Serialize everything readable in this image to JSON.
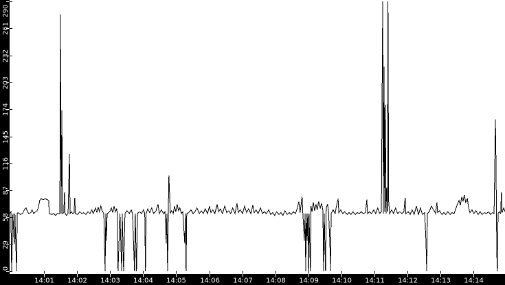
{
  "chart_data": {
    "type": "line",
    "title": "",
    "xlabel": "",
    "ylabel": "",
    "grid": false,
    "legend": "none",
    "line_color": "#000000",
    "plot_bg_color": "#ffffff",
    "axis_band_color": "#000000",
    "axis_text_color": "#ffffff",
    "ylim": [
      0,
      290
    ],
    "y_ticks": [
      0,
      29,
      58,
      87,
      116,
      145,
      174,
      203,
      232,
      261,
      290
    ],
    "x_tick_labels": [
      "14:01",
      "14:02",
      "14:03",
      "14:04",
      "14:05",
      "14:06",
      "14:07",
      "14:08",
      "14:09",
      "14:10",
      "14:11",
      "14:12",
      "14:13",
      "14:14"
    ],
    "x_tick_minutes": [
      1,
      2,
      3,
      4,
      5,
      6,
      7,
      8,
      9,
      10,
      11,
      12,
      13,
      14
    ],
    "xlim_minutes": [
      -0.04,
      14.95
    ],
    "x_unit": "time (HH:MM)",
    "baseline_value": 62,
    "points": [
      [
        -0.04,
        62
      ],
      [
        0,
        64
      ],
      [
        0.02,
        0
      ],
      [
        0.06,
        62
      ],
      [
        0.1,
        29
      ],
      [
        0.12,
        62
      ],
      [
        0.17,
        0
      ],
      [
        0.19,
        62
      ],
      [
        0.21,
        63
      ],
      [
        0.29,
        61
      ],
      [
        0.35,
        62
      ],
      [
        0.42,
        67
      ],
      [
        0.46,
        68
      ],
      [
        0.5,
        64
      ],
      [
        0.54,
        62
      ],
      [
        0.6,
        63
      ],
      [
        0.64,
        66
      ],
      [
        0.69,
        62
      ],
      [
        0.75,
        64
      ],
      [
        0.79,
        65
      ],
      [
        0.83,
        68
      ],
      [
        0.87,
        76
      ],
      [
        0.91,
        78
      ],
      [
        0.98,
        77
      ],
      [
        1.04,
        78
      ],
      [
        1.1,
        77
      ],
      [
        1.14,
        76
      ],
      [
        1.16,
        62
      ],
      [
        1.23,
        61
      ],
      [
        1.29,
        62
      ],
      [
        1.35,
        60
      ],
      [
        1.41,
        62
      ],
      [
        1.48,
        62
      ],
      [
        1.5,
        276
      ],
      [
        1.52,
        62
      ],
      [
        1.54,
        173
      ],
      [
        1.56,
        62
      ],
      [
        1.6,
        63
      ],
      [
        1.62,
        85
      ],
      [
        1.64,
        62
      ],
      [
        1.68,
        60
      ],
      [
        1.73,
        62
      ],
      [
        1.75,
        94
      ],
      [
        1.77,
        126
      ],
      [
        1.79,
        62
      ],
      [
        1.83,
        64
      ],
      [
        1.87,
        62
      ],
      [
        1.91,
        63
      ],
      [
        1.93,
        79
      ],
      [
        1.95,
        62
      ],
      [
        2.02,
        61
      ],
      [
        2.08,
        64
      ],
      [
        2.14,
        62
      ],
      [
        2.2,
        63
      ],
      [
        2.27,
        61
      ],
      [
        2.33,
        64
      ],
      [
        2.39,
        62
      ],
      [
        2.45,
        66
      ],
      [
        2.49,
        62
      ],
      [
        2.56,
        68
      ],
      [
        2.6,
        63
      ],
      [
        2.64,
        69
      ],
      [
        2.68,
        64
      ],
      [
        2.72,
        70
      ],
      [
        2.76,
        65
      ],
      [
        2.81,
        62
      ],
      [
        2.85,
        0
      ],
      [
        2.87,
        62
      ],
      [
        2.89,
        33
      ],
      [
        2.91,
        62
      ],
      [
        2.99,
        64
      ],
      [
        3.04,
        68
      ],
      [
        3.08,
        63
      ],
      [
        3.12,
        70
      ],
      [
        3.16,
        64
      ],
      [
        3.2,
        67
      ],
      [
        3.22,
        62
      ],
      [
        3.24,
        0
      ],
      [
        3.3,
        62
      ],
      [
        3.35,
        0
      ],
      [
        3.37,
        62
      ],
      [
        3.41,
        0
      ],
      [
        3.45,
        62
      ],
      [
        3.51,
        65
      ],
      [
        3.58,
        62
      ],
      [
        3.64,
        66
      ],
      [
        3.68,
        62
      ],
      [
        3.74,
        0
      ],
      [
        3.76,
        62
      ],
      [
        3.8,
        0
      ],
      [
        3.83,
        62
      ],
      [
        3.89,
        64
      ],
      [
        3.95,
        62
      ],
      [
        4.01,
        66
      ],
      [
        4.05,
        62
      ],
      [
        4.07,
        0
      ],
      [
        4.09,
        62
      ],
      [
        4.14,
        67
      ],
      [
        4.2,
        63
      ],
      [
        4.26,
        68
      ],
      [
        4.32,
        62
      ],
      [
        4.39,
        65
      ],
      [
        4.45,
        72
      ],
      [
        4.49,
        62
      ],
      [
        4.55,
        66
      ],
      [
        4.62,
        62
      ],
      [
        4.66,
        64
      ],
      [
        4.7,
        30
      ],
      [
        4.72,
        62
      ],
      [
        4.74,
        0
      ],
      [
        4.76,
        62
      ],
      [
        4.78,
        103
      ],
      [
        4.8,
        84
      ],
      [
        4.82,
        62
      ],
      [
        4.86,
        65
      ],
      [
        4.91,
        62
      ],
      [
        4.95,
        70
      ],
      [
        4.99,
        64
      ],
      [
        5.03,
        72
      ],
      [
        5.07,
        65
      ],
      [
        5.11,
        68
      ],
      [
        5.16,
        62
      ],
      [
        5.2,
        64
      ],
      [
        5.26,
        30
      ],
      [
        5.28,
        62
      ],
      [
        5.3,
        0
      ],
      [
        5.32,
        62
      ],
      [
        5.38,
        63
      ],
      [
        5.45,
        66
      ],
      [
        5.51,
        62
      ],
      [
        5.57,
        64
      ],
      [
        5.63,
        68
      ],
      [
        5.7,
        62
      ],
      [
        5.76,
        65
      ],
      [
        5.82,
        62
      ],
      [
        5.88,
        67
      ],
      [
        5.95,
        62
      ],
      [
        6.01,
        70
      ],
      [
        6.05,
        63
      ],
      [
        6.11,
        66
      ],
      [
        6.17,
        62
      ],
      [
        6.24,
        72
      ],
      [
        6.28,
        64
      ],
      [
        6.34,
        67
      ],
      [
        6.4,
        62
      ],
      [
        6.47,
        70
      ],
      [
        6.53,
        63
      ],
      [
        6.59,
        65
      ],
      [
        6.65,
        62
      ],
      [
        6.71,
        68
      ],
      [
        6.78,
        62
      ],
      [
        6.84,
        73
      ],
      [
        6.88,
        63
      ],
      [
        6.94,
        66
      ],
      [
        7.01,
        62
      ],
      [
        7.07,
        70
      ],
      [
        7.13,
        63
      ],
      [
        7.19,
        67
      ],
      [
        7.26,
        62
      ],
      [
        7.32,
        71
      ],
      [
        7.36,
        63
      ],
      [
        7.42,
        66
      ],
      [
        7.48,
        62
      ],
      [
        7.55,
        68
      ],
      [
        7.61,
        62
      ],
      [
        7.67,
        64
      ],
      [
        7.73,
        62
      ],
      [
        7.8,
        66
      ],
      [
        7.86,
        61
      ],
      [
        7.92,
        63
      ],
      [
        7.98,
        60
      ],
      [
        8.04,
        64
      ],
      [
        8.11,
        61
      ],
      [
        8.17,
        63
      ],
      [
        8.23,
        60
      ],
      [
        8.29,
        65
      ],
      [
        8.36,
        61
      ],
      [
        8.42,
        63
      ],
      [
        8.48,
        61
      ],
      [
        8.54,
        64
      ],
      [
        8.61,
        62
      ],
      [
        8.67,
        68
      ],
      [
        8.71,
        75
      ],
      [
        8.75,
        63
      ],
      [
        8.81,
        80
      ],
      [
        8.83,
        65
      ],
      [
        8.88,
        33
      ],
      [
        8.9,
        62
      ],
      [
        8.92,
        0
      ],
      [
        8.94,
        62
      ],
      [
        8.96,
        33
      ],
      [
        8.98,
        62
      ],
      [
        9.0,
        0
      ],
      [
        9.02,
        62
      ],
      [
        9.06,
        0
      ],
      [
        9.08,
        70
      ],
      [
        9.11,
        64
      ],
      [
        9.15,
        74
      ],
      [
        9.19,
        65
      ],
      [
        9.23,
        72
      ],
      [
        9.27,
        66
      ],
      [
        9.31,
        75
      ],
      [
        9.36,
        68
      ],
      [
        9.4,
        73
      ],
      [
        9.44,
        65
      ],
      [
        9.46,
        0
      ],
      [
        9.48,
        62
      ],
      [
        9.52,
        0
      ],
      [
        9.54,
        68
      ],
      [
        9.58,
        72
      ],
      [
        9.61,
        64
      ],
      [
        9.65,
        31
      ],
      [
        9.67,
        0
      ],
      [
        9.69,
        62
      ],
      [
        9.75,
        66
      ],
      [
        9.81,
        62
      ],
      [
        9.85,
        70
      ],
      [
        9.9,
        78
      ],
      [
        9.92,
        63
      ],
      [
        9.98,
        66
      ],
      [
        10.04,
        62
      ],
      [
        10.1,
        64
      ],
      [
        10.17,
        61
      ],
      [
        10.23,
        63
      ],
      [
        10.29,
        61
      ],
      [
        10.35,
        64
      ],
      [
        10.42,
        61
      ],
      [
        10.48,
        63
      ],
      [
        10.54,
        62
      ],
      [
        10.6,
        64
      ],
      [
        10.66,
        62
      ],
      [
        10.73,
        63
      ],
      [
        10.77,
        77
      ],
      [
        10.79,
        62
      ],
      [
        10.85,
        64
      ],
      [
        10.91,
        62
      ],
      [
        10.98,
        66
      ],
      [
        11.04,
        62
      ],
      [
        11.1,
        68
      ],
      [
        11.16,
        62
      ],
      [
        11.21,
        64
      ],
      [
        11.25,
        290
      ],
      [
        11.27,
        62
      ],
      [
        11.29,
        220
      ],
      [
        11.31,
        64
      ],
      [
        11.33,
        179
      ],
      [
        11.35,
        62
      ],
      [
        11.37,
        90
      ],
      [
        11.39,
        64
      ],
      [
        11.41,
        290
      ],
      [
        11.43,
        75
      ],
      [
        11.46,
        62
      ],
      [
        11.52,
        66
      ],
      [
        11.58,
        62
      ],
      [
        11.64,
        68
      ],
      [
        11.7,
        62
      ],
      [
        11.77,
        64
      ],
      [
        11.83,
        62
      ],
      [
        11.89,
        64
      ],
      [
        11.93,
        79
      ],
      [
        11.95,
        62
      ],
      [
        12.02,
        64
      ],
      [
        12.08,
        61
      ],
      [
        12.14,
        66
      ],
      [
        12.2,
        61
      ],
      [
        12.27,
        70
      ],
      [
        12.33,
        61
      ],
      [
        12.39,
        68
      ],
      [
        12.45,
        61
      ],
      [
        12.52,
        63
      ],
      [
        12.56,
        32
      ],
      [
        12.58,
        0
      ],
      [
        12.6,
        62
      ],
      [
        12.66,
        64
      ],
      [
        12.72,
        70
      ],
      [
        12.79,
        66
      ],
      [
        12.85,
        62
      ],
      [
        12.89,
        74
      ],
      [
        12.91,
        63
      ],
      [
        12.97,
        65
      ],
      [
        13.04,
        61
      ],
      [
        13.1,
        63
      ],
      [
        13.16,
        61
      ],
      [
        13.22,
        64
      ],
      [
        13.29,
        61
      ],
      [
        13.35,
        63
      ],
      [
        13.41,
        62
      ],
      [
        13.47,
        68
      ],
      [
        13.51,
        72
      ],
      [
        13.56,
        76
      ],
      [
        13.6,
        71
      ],
      [
        13.64,
        80
      ],
      [
        13.68,
        75
      ],
      [
        13.72,
        82
      ],
      [
        13.76,
        74
      ],
      [
        13.81,
        78
      ],
      [
        13.85,
        68
      ],
      [
        13.89,
        63
      ],
      [
        13.95,
        66
      ],
      [
        14.01,
        62
      ],
      [
        14.07,
        65
      ],
      [
        14.14,
        61
      ],
      [
        14.2,
        64
      ],
      [
        14.26,
        61
      ],
      [
        14.32,
        63
      ],
      [
        14.39,
        62
      ],
      [
        14.45,
        64
      ],
      [
        14.51,
        61
      ],
      [
        14.57,
        63
      ],
      [
        14.62,
        62
      ],
      [
        14.66,
        163
      ],
      [
        14.68,
        111
      ],
      [
        14.7,
        20
      ],
      [
        14.72,
        0
      ],
      [
        14.74,
        62
      ],
      [
        14.78,
        64
      ],
      [
        14.82,
        62
      ],
      [
        14.84,
        85
      ],
      [
        14.86,
        63
      ],
      [
        14.91,
        68
      ],
      [
        14.95,
        64
      ]
    ]
  }
}
